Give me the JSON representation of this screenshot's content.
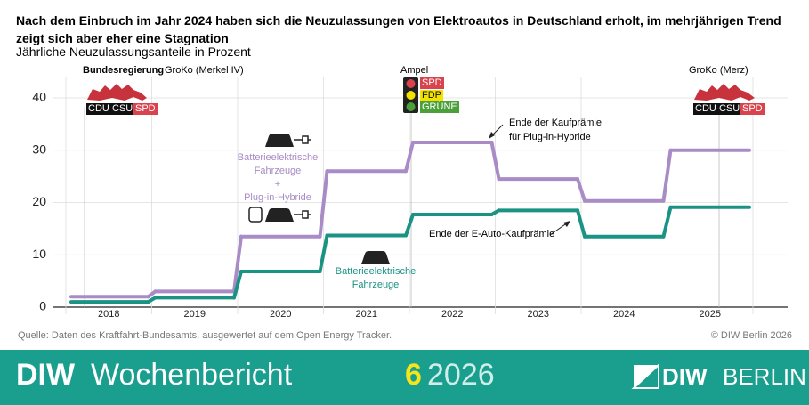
{
  "chart_data": {
    "type": "line",
    "title": "Nach dem Einbruch im Jahr 2024 haben sich die Neuzulassungen von Elektroautos in Deutschland erholt, im mehrjährigen Trend zeigt sich aber eher eine Stagnation",
    "subtitle": "Jährliche Neuzulassungsanteile in Prozent",
    "categories": [
      "2018",
      "2019",
      "2020",
      "2021",
      "2022",
      "2023",
      "2024",
      "2025"
    ],
    "series": [
      {
        "name": "Batterieelektrische\nFahrzeuge\n+\nPlug-in-Hybride",
        "color": "#a98bc6",
        "values": [
          2,
          3,
          13.5,
          26,
          31.5,
          24.5,
          20.3,
          30
        ]
      },
      {
        "name": "Batterieelektrische\nFahrzeuge",
        "color": "#1b9384",
        "values": [
          1,
          1.8,
          6.8,
          13.7,
          17.7,
          18.5,
          13.5,
          19.1
        ]
      }
    ],
    "ylim": [
      0,
      44
    ],
    "yticks": [
      0,
      10,
      20,
      30,
      40
    ],
    "grid": true,
    "government_heading": "Bundesregierung",
    "governments": [
      {
        "label": "GroKo (Merkel IV)",
        "parties": [
          "CDU",
          "CSU",
          "SPD"
        ]
      },
      {
        "label": "Ampel",
        "parties": [
          "SPD",
          "FDP",
          "GRÜNE"
        ]
      },
      {
        "label": "GroKo (Merz)",
        "parties": [
          "CDU",
          "CSU",
          "SPD"
        ]
      }
    ],
    "annotations": [
      "Ende der Kaufprämie\nfür Plug-in-Hybride",
      "Ende der E-Auto-Kaufprämie"
    ],
    "source": "Quelle: Daten des Kraftfahrt-Bundesamts, ausgewertet auf dem Open Energy Tracker.",
    "copyright": "© DIW Berlin 2026"
  },
  "footer": {
    "brand": "DIW",
    "publication": "Wochenbericht",
    "issue": "6",
    "year": "2026",
    "logo": [
      "DIW",
      "BERLIN"
    ]
  }
}
